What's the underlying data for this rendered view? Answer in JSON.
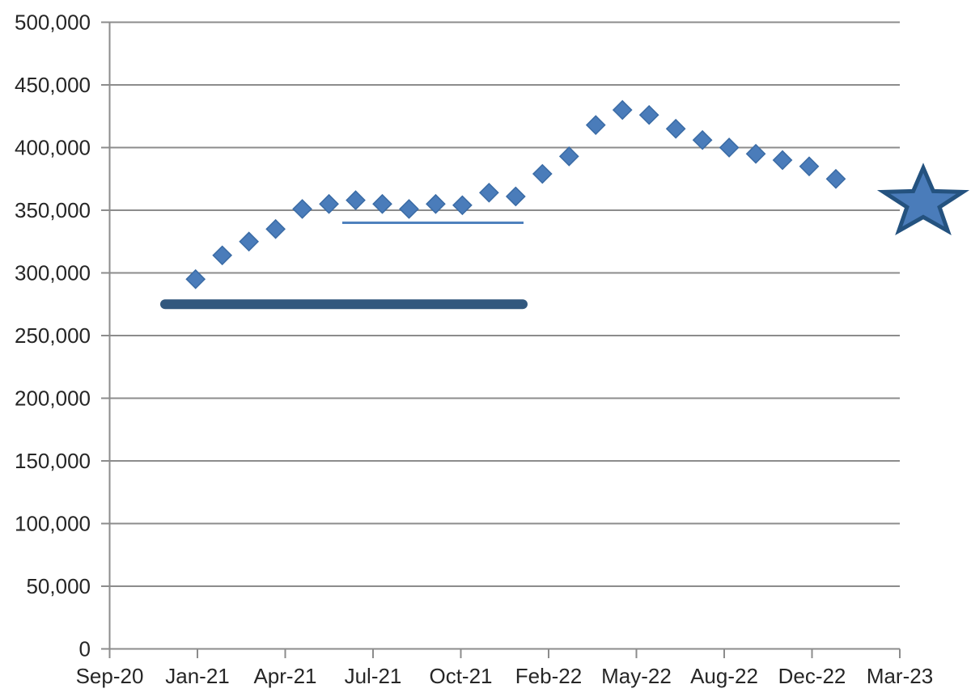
{
  "chart_data": {
    "type": "scatter",
    "title": "",
    "x": [
      "Jan-21",
      "Feb-21",
      "Mar-21",
      "Apr-21",
      "May-21",
      "Jun-21",
      "Jul-21",
      "Aug-21",
      "Sep-21",
      "Oct-21",
      "Nov-21",
      "Dec-21",
      "Jan-22",
      "Feb-22",
      "Mar-22",
      "Apr-22",
      "May-22",
      "Jun-22",
      "Jul-22",
      "Aug-22",
      "Sep-22",
      "Oct-22",
      "Nov-22",
      "Dec-22",
      "Jan-23"
    ],
    "values": [
      295000,
      314000,
      325000,
      335000,
      351000,
      355000,
      358000,
      355000,
      351000,
      355000,
      354000,
      364000,
      361000,
      379000,
      393000,
      418000,
      430000,
      426000,
      415000,
      406000,
      400000,
      395000,
      390000,
      385000,
      375000
    ],
    "x_tick_labels": [
      "Sep-20",
      "Jan-21",
      "Apr-21",
      "Jul-21",
      "Oct-21",
      "Feb-22",
      "May-22",
      "Aug-22",
      "Dec-22",
      "Mar-23"
    ],
    "y_tick_labels": [
      "500,000",
      "450,000",
      "400,000",
      "350,000",
      "300,000",
      "250,000",
      "200,000",
      "150,000",
      "100,000",
      "50,000",
      "0"
    ],
    "ylim": [
      0,
      500000
    ],
    "y_tick_step": 50000,
    "grid": "horizontal",
    "legend": "none",
    "marker": "diamond",
    "annotations": {
      "baseline_bar": {
        "shape": "thick-rounded-bar",
        "value": 275000,
        "x_span": [
          "Dec-20",
          "Jan-22"
        ]
      },
      "reference_line": {
        "shape": "thin-line",
        "value": 340000,
        "x_span": [
          "Jun-21",
          "Jan-22"
        ]
      },
      "star_marker": {
        "shape": "five-point-star",
        "value": 356000,
        "x": "Mar-23"
      }
    },
    "colors": {
      "marker_fill": "#4a7cba",
      "marker_edge": "#3a6ba5",
      "bar": "#32587e",
      "reference_line": "#4f81bd",
      "star_fill": "#4a7cba",
      "star_edge": "#24527f",
      "grid": "#8c8c8c",
      "axis_text": "#262626"
    }
  }
}
